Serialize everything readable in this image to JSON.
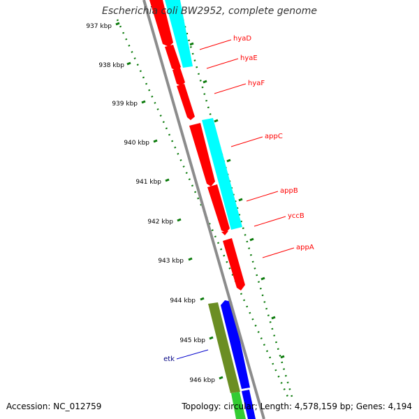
{
  "title": "Escherichia coli BW2952, complete genome",
  "accession": "Accession: NC_012759",
  "topology": "Topology: circular; Length: 4,578,159 bp; Genes: 4,194",
  "colors": {
    "tick": "#0a7a0a",
    "backbone": "#8c8c8c",
    "red_gene": "#ff0000",
    "cyan_gene": "#00ffff",
    "olive_gene": "#6b8e23",
    "blue_gene": "#0000ff",
    "green_gene": "#33cc33"
  },
  "ticks": [
    {
      "label": "937 kbp"
    },
    {
      "label": "938 kbp"
    },
    {
      "label": "939 kbp"
    },
    {
      "label": "940 kbp"
    },
    {
      "label": "941 kbp"
    },
    {
      "label": "942 kbp"
    },
    {
      "label": "943 kbp"
    },
    {
      "label": "944 kbp"
    },
    {
      "label": "945 kbp"
    },
    {
      "label": "946 kbp"
    }
  ],
  "genes": [
    {
      "name": "hyaD",
      "color": "#ff0000"
    },
    {
      "name": "hyaE",
      "color": "#ff0000"
    },
    {
      "name": "hyaF",
      "color": "#ff0000"
    },
    {
      "name": "appC",
      "color": "#ff0000"
    },
    {
      "name": "appB",
      "color": "#ff0000"
    },
    {
      "name": "yccB",
      "color": "#ff0000"
    },
    {
      "name": "appA",
      "color": "#ff0000"
    },
    {
      "name": "etk",
      "color": "#000080"
    }
  ]
}
